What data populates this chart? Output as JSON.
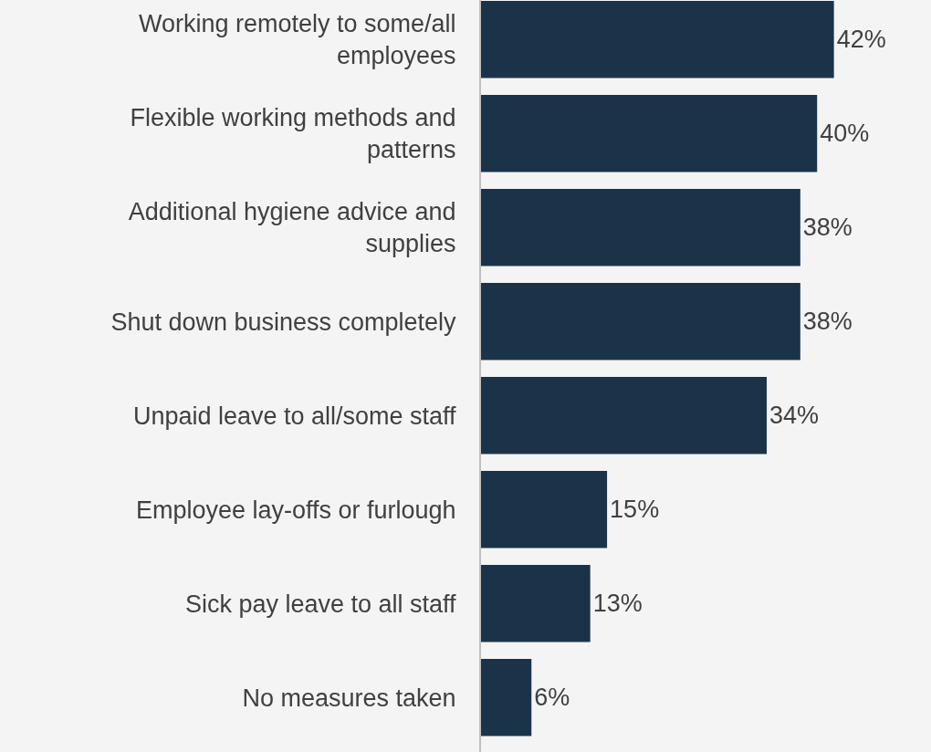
{
  "chart_data": {
    "type": "bar",
    "orientation": "horizontal",
    "categories": [
      "Working remotely to some/all employees",
      "Flexible working methods and patterns",
      "Additional hygiene advice and supplies",
      "Shut down business completely",
      "Unpaid leave to all/some staff",
      "Employee lay-offs or furlough",
      "Sick pay leave to all staff",
      "No measures taken"
    ],
    "values": [
      42,
      40,
      38,
      38,
      34,
      15,
      13,
      6
    ],
    "value_labels": [
      "42%",
      "40%",
      "38%",
      "38%",
      "34%",
      "15%",
      "13%",
      "6%"
    ],
    "color": "#1a3349",
    "tick_labels": "y",
    "grid": false,
    "legend": false
  }
}
